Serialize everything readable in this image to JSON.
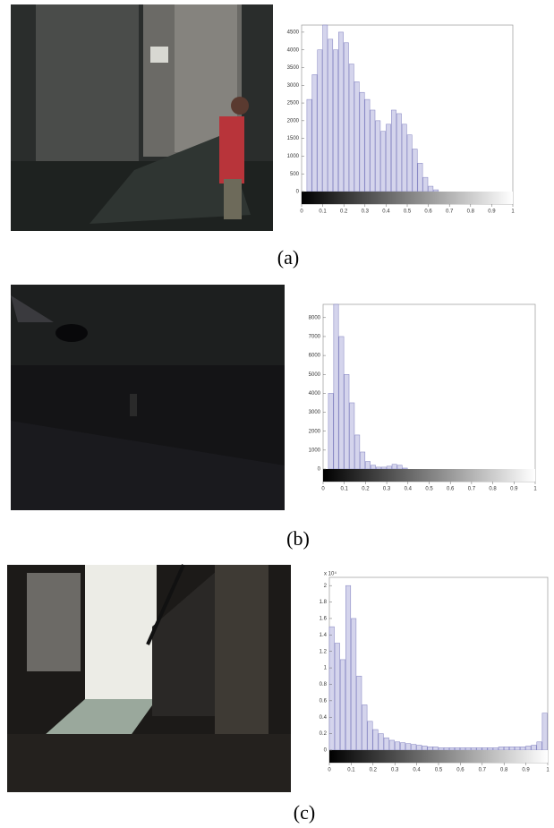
{
  "chart_data": [
    {
      "type": "histogram",
      "caption": "(a)",
      "bins": [
        0,
        0.025,
        0.05,
        0.075,
        0.1,
        0.125,
        0.15,
        0.175,
        0.2,
        0.225,
        0.25,
        0.275,
        0.3,
        0.325,
        0.35,
        0.375,
        0.4,
        0.425,
        0.45,
        0.475,
        0.5,
        0.525,
        0.55,
        0.575,
        0.6,
        0.625,
        0.65,
        0.675,
        0.7,
        0.725,
        0.75,
        0.775,
        0.8,
        0.825,
        0.85,
        0.875,
        0.9,
        0.925,
        0.95,
        0.975,
        1
      ],
      "values": [
        0,
        2600,
        3300,
        4000,
        4700,
        4300,
        4000,
        4500,
        4200,
        3600,
        3100,
        2800,
        2600,
        2300,
        2000,
        1700,
        1900,
        2300,
        2200,
        1900,
        1600,
        1200,
        800,
        400,
        150,
        50,
        0,
        0,
        0,
        0,
        0,
        0,
        0,
        0,
        0,
        0,
        0,
        0,
        0,
        0
      ],
      "color": "#7f7fbf",
      "xlim": [
        0,
        1
      ],
      "xticks": [
        0,
        0.1,
        0.2,
        0.3,
        0.4,
        0.5,
        0.6,
        0.7,
        0.8,
        0.9,
        1
      ],
      "ylim": [
        0,
        4700
      ],
      "yticks": [
        0,
        500,
        1000,
        1500,
        2000,
        2500,
        3000,
        3500,
        4000,
        4500
      ]
    },
    {
      "type": "histogram",
      "caption": "(b)",
      "bins": [
        0,
        0.025,
        0.05,
        0.075,
        0.1,
        0.125,
        0.15,
        0.175,
        0.2,
        0.225,
        0.25,
        0.275,
        0.3,
        0.325,
        0.35,
        0.375,
        0.4,
        0.425,
        0.45,
        0.475,
        0.5,
        0.525,
        0.55,
        0.575,
        0.6,
        0.625,
        0.65,
        0.675,
        0.7,
        0.725,
        0.75,
        0.775,
        0.8,
        0.825,
        0.85,
        0.875,
        0.9,
        0.925,
        0.95,
        0.975,
        1
      ],
      "values": [
        0,
        4000,
        8700,
        7000,
        5000,
        3500,
        1800,
        900,
        400,
        200,
        100,
        100,
        150,
        250,
        200,
        50,
        0,
        0,
        0,
        0,
        0,
        0,
        0,
        0,
        0,
        0,
        0,
        0,
        0,
        0,
        0,
        0,
        0,
        0,
        0,
        0,
        0,
        0,
        0,
        0
      ],
      "color": "#7f7fbf",
      "xlim": [
        0,
        1
      ],
      "xticks": [
        0,
        0.1,
        0.2,
        0.3,
        0.4,
        0.5,
        0.6,
        0.7,
        0.8,
        0.9,
        1
      ],
      "ylim": [
        0,
        8700
      ],
      "yticks": [
        0,
        1000,
        2000,
        3000,
        4000,
        5000,
        6000,
        7000,
        8000
      ]
    },
    {
      "type": "histogram",
      "caption": "(c)",
      "y_multiplier": "x 10⁴",
      "bins": [
        0,
        0.025,
        0.05,
        0.075,
        0.1,
        0.125,
        0.15,
        0.175,
        0.2,
        0.225,
        0.25,
        0.275,
        0.3,
        0.325,
        0.35,
        0.375,
        0.4,
        0.425,
        0.45,
        0.475,
        0.5,
        0.525,
        0.55,
        0.575,
        0.6,
        0.625,
        0.65,
        0.675,
        0.7,
        0.725,
        0.75,
        0.775,
        0.8,
        0.825,
        0.85,
        0.875,
        0.9,
        0.925,
        0.95,
        0.975,
        1
      ],
      "values": [
        1.5,
        1.3,
        1.1,
        2.0,
        1.6,
        0.9,
        0.55,
        0.35,
        0.25,
        0.2,
        0.15,
        0.12,
        0.1,
        0.09,
        0.08,
        0.07,
        0.06,
        0.05,
        0.04,
        0.04,
        0.03,
        0.03,
        0.03,
        0.03,
        0.03,
        0.03,
        0.03,
        0.03,
        0.03,
        0.03,
        0.03,
        0.04,
        0.04,
        0.04,
        0.04,
        0.04,
        0.05,
        0.06,
        0.1,
        0.45
      ],
      "color": "#7f7fbf",
      "xlim": [
        0,
        1
      ],
      "xticks": [
        0,
        0.1,
        0.2,
        0.3,
        0.4,
        0.5,
        0.6,
        0.7,
        0.8,
        0.9,
        1
      ],
      "ylim": [
        0,
        2.1
      ],
      "yticks": [
        0,
        0.2,
        0.4,
        0.6,
        0.8,
        1,
        1.2,
        1.4,
        1.6,
        1.8,
        2
      ]
    }
  ]
}
